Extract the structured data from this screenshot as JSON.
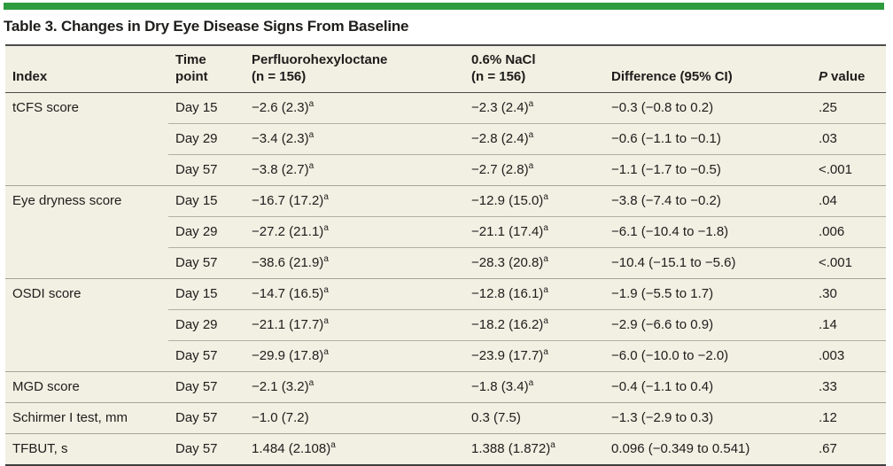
{
  "table": {
    "title": "Table 3. Changes in Dry Eye Disease Signs From Baseline",
    "header": {
      "index": "Index",
      "time": "Time\npoint",
      "drug": "Perfluorohexyloctane\n(n = 156)",
      "nacl": "0.6% NaCl\n(n = 156)",
      "diff": "Difference (95% CI)",
      "p_italic": "P",
      "p_rest": "value"
    },
    "footnote_marker": "a",
    "rows": [
      {
        "index": "tCFS score",
        "time": "Day 15",
        "drug": "−2.6 (2.3)",
        "drug_sup": "a",
        "nacl": "−2.3 (2.4)",
        "nacl_sup": "a",
        "diff": "−0.3 (−0.8 to 0.2)",
        "p": ".25",
        "group_start": true
      },
      {
        "index": "",
        "time": "Day 29",
        "drug": "−3.4 (2.3)",
        "drug_sup": "a",
        "nacl": "−2.8 (2.4)",
        "nacl_sup": "a",
        "diff": "−0.6 (−1.1 to −0.1)",
        "p": ".03",
        "group_start": false
      },
      {
        "index": "",
        "time": "Day 57",
        "drug": "−3.8 (2.7)",
        "drug_sup": "a",
        "nacl": "−2.7 (2.8)",
        "nacl_sup": "a",
        "diff": "−1.1 (−1.7 to −0.5)",
        "p": "<.001",
        "group_start": false
      },
      {
        "index": "Eye dryness score",
        "time": "Day 15",
        "drug": "−16.7 (17.2)",
        "drug_sup": "a",
        "nacl": "−12.9 (15.0)",
        "nacl_sup": "a",
        "diff": "−3.8 (−7.4 to −0.2)",
        "p": ".04",
        "group_start": true
      },
      {
        "index": "",
        "time": "Day 29",
        "drug": "−27.2 (21.1)",
        "drug_sup": "a",
        "nacl": "−21.1 (17.4)",
        "nacl_sup": "a",
        "diff": "−6.1 (−10.4 to −1.8)",
        "p": ".006",
        "group_start": false
      },
      {
        "index": "",
        "time": "Day 57",
        "drug": "−38.6 (21.9)",
        "drug_sup": "a",
        "nacl": "−28.3 (20.8)",
        "nacl_sup": "a",
        "diff": "−10.4 (−15.1 to −5.6)",
        "p": "<.001",
        "group_start": false
      },
      {
        "index": "OSDI score",
        "time": "Day 15",
        "drug": "−14.7 (16.5)",
        "drug_sup": "a",
        "nacl": "−12.8 (16.1)",
        "nacl_sup": "a",
        "diff": "−1.9 (−5.5 to 1.7)",
        "p": ".30",
        "group_start": true
      },
      {
        "index": "",
        "time": "Day 29",
        "drug": "−21.1 (17.7)",
        "drug_sup": "a",
        "nacl": "−18.2 (16.2)",
        "nacl_sup": "a",
        "diff": "−2.9 (−6.6 to 0.9)",
        "p": ".14",
        "group_start": false
      },
      {
        "index": "",
        "time": "Day 57",
        "drug": "−29.9 (17.8)",
        "drug_sup": "a",
        "nacl": "−23.9 (17.7)",
        "nacl_sup": "a",
        "diff": "−6.0 (−10.0 to −2.0)",
        "p": ".003",
        "group_start": false
      },
      {
        "index": "MGD score",
        "time": "Day 57",
        "drug": "−2.1 (3.2)",
        "drug_sup": "a",
        "nacl": "−1.8 (3.4)",
        "nacl_sup": "a",
        "diff": "−0.4 (−1.1 to 0.4)",
        "p": ".33",
        "group_start": true
      },
      {
        "index": "Schirmer I test, mm",
        "time": "Day 57",
        "drug": "−1.0 (7.2)",
        "drug_sup": "",
        "nacl": "0.3 (7.5)",
        "nacl_sup": "",
        "diff": "−1.3 (−2.9 to 0.3)",
        "p": ".12",
        "group_start": true
      },
      {
        "index": "TFBUT, s",
        "time": "Day 57",
        "drug": "1.484 (2.108)",
        "drug_sup": "a",
        "nacl": "1.388 (1.872)",
        "nacl_sup": "a",
        "diff": "0.096 (−0.349 to 0.541)",
        "p": ".67",
        "group_start": true
      }
    ]
  },
  "colors": {
    "accent_green": "#2e9b3f",
    "row_background": "#f2efe3",
    "rule_dark": "#4c4c4c",
    "rule_light": "#b3b0a2",
    "text": "#1e1d1b"
  }
}
